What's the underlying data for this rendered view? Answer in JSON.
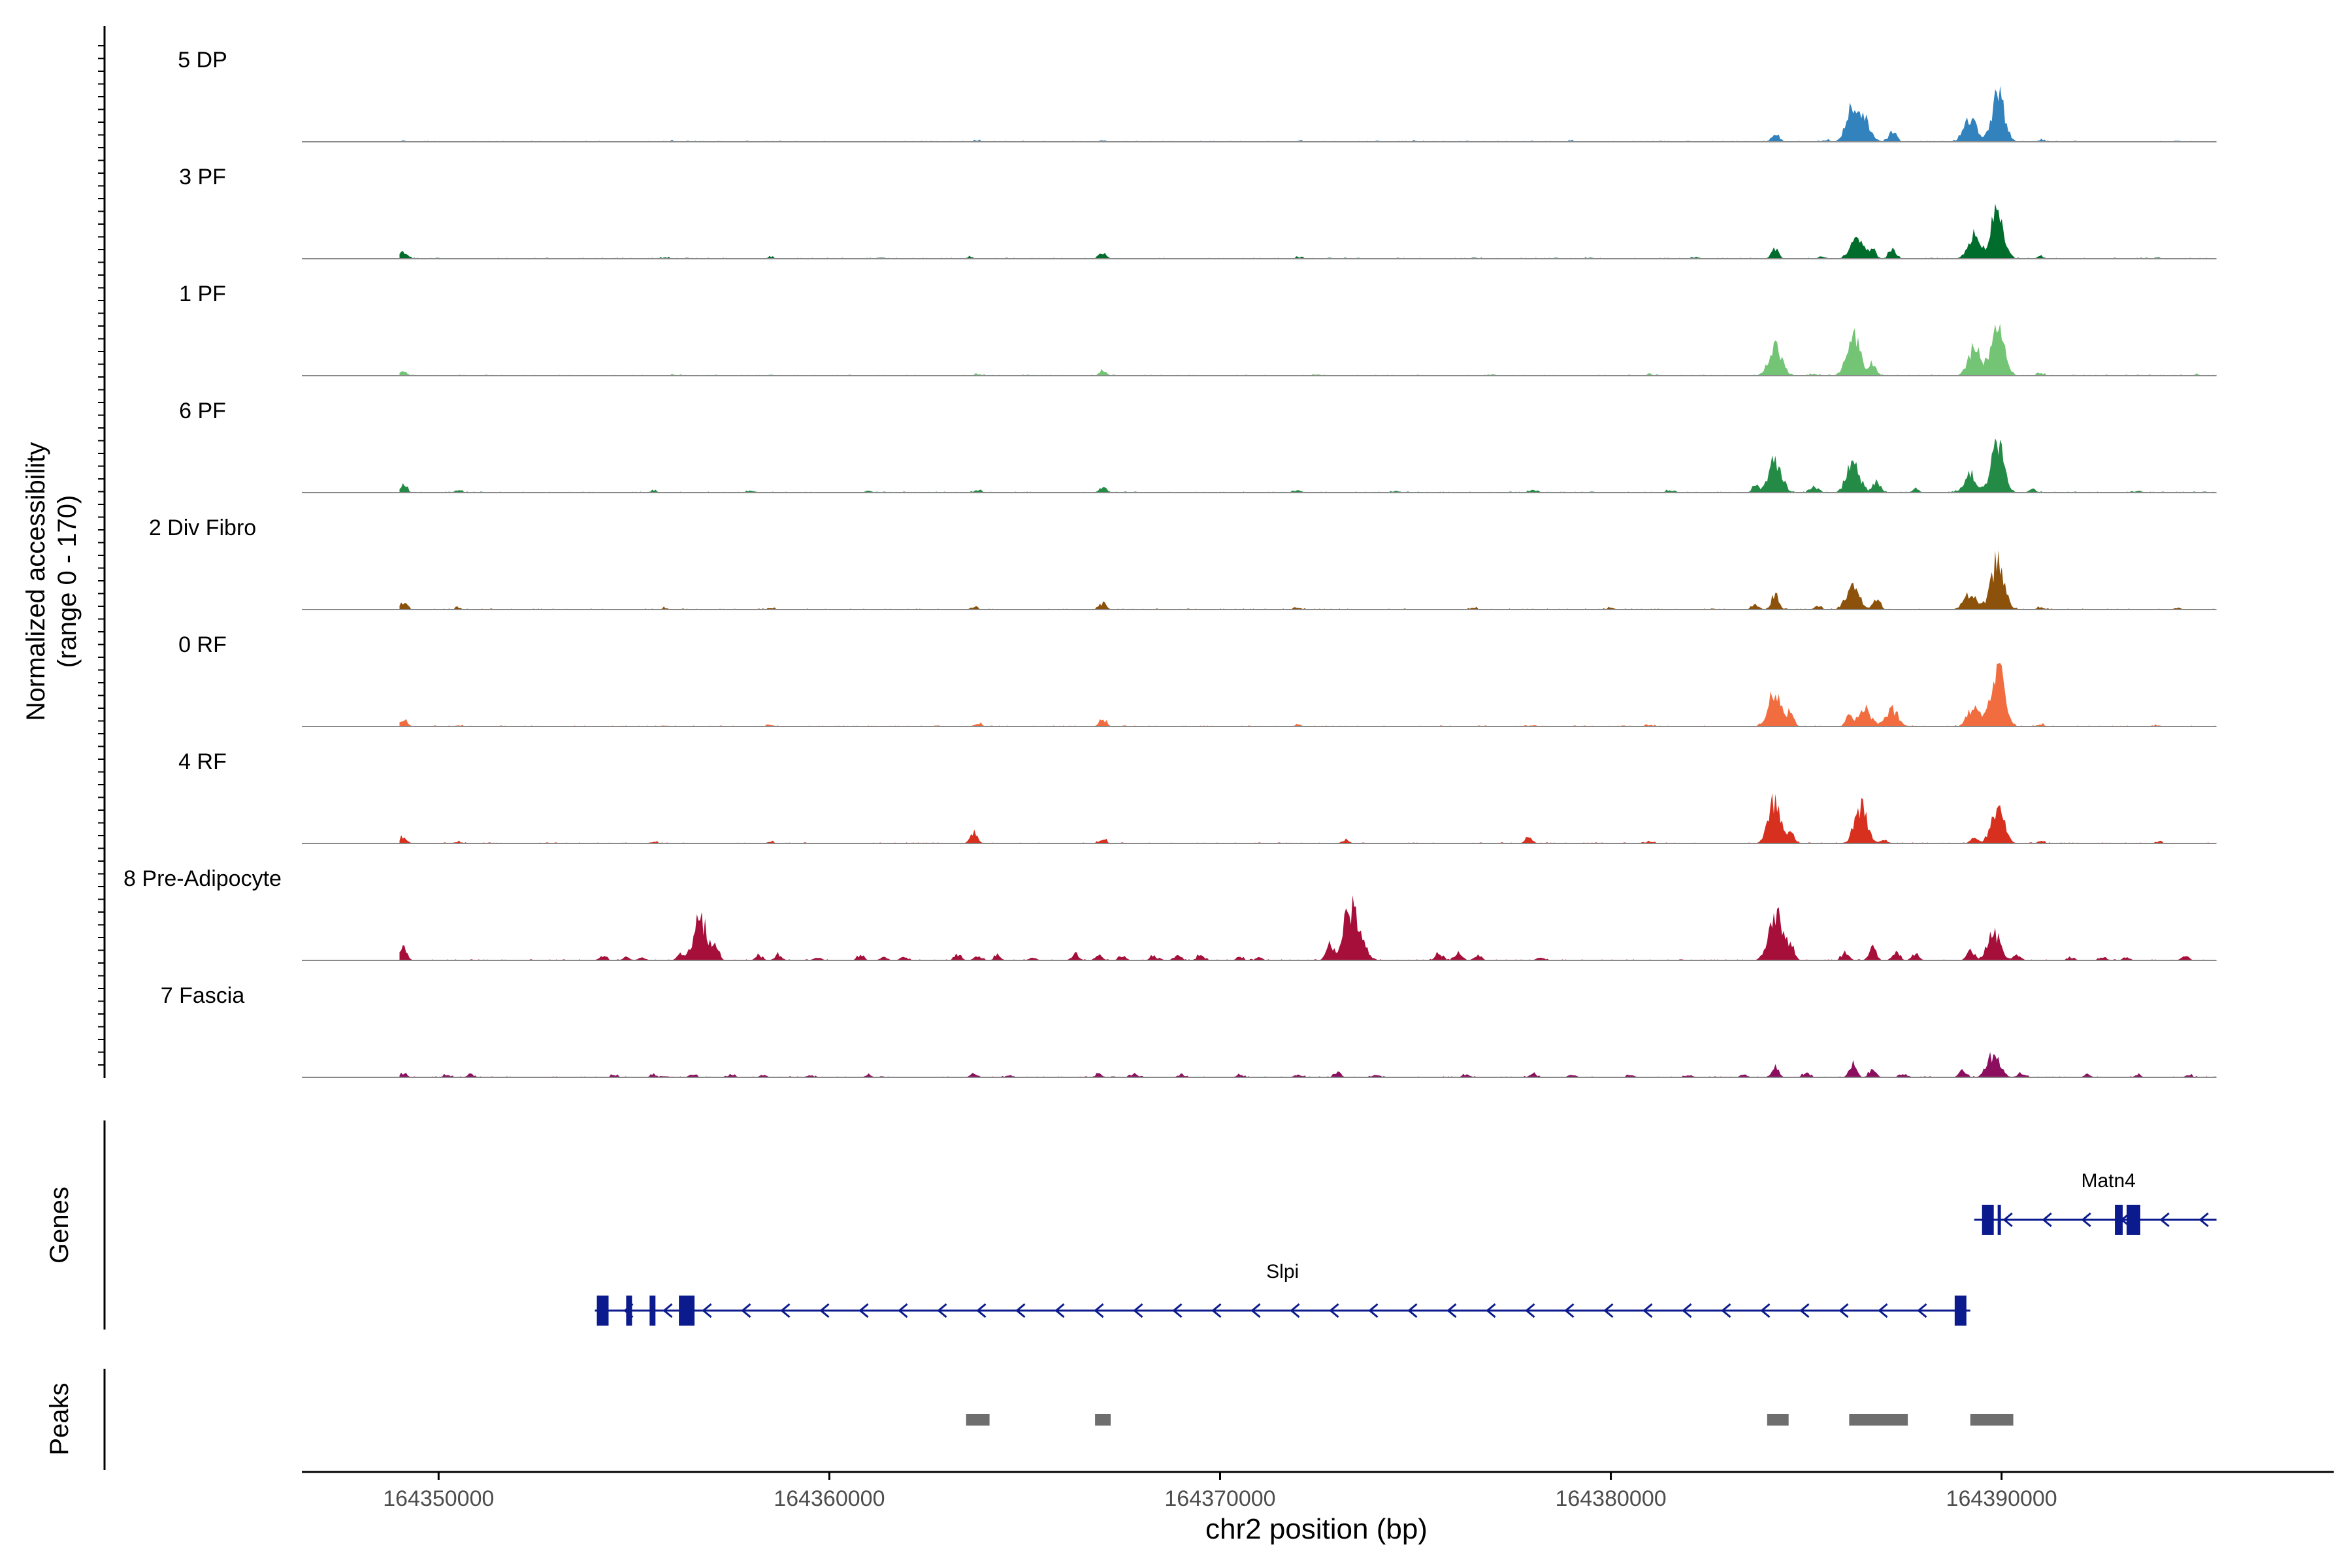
{
  "chart_data": {
    "type": "area",
    "subtype": "genome-coverage-tracks",
    "ylabel_line1": "Normalized accessibility",
    "ylabel_line2": "(range 0 - 170)",
    "y_range": [
      0,
      170
    ],
    "xlabel": "chr2 position (bp)",
    "xlim": [
      164346500,
      164398500
    ],
    "x_ticks": [
      164350000,
      164360000,
      164370000,
      164380000,
      164390000
    ],
    "x_tick_labels": [
      "164350000",
      "164360000",
      "164370000",
      "164380000",
      "164390000"
    ],
    "track_extent": [
      164349000,
      164395500
    ],
    "series": [
      {
        "name": "5 DP",
        "color": "#3182BD",
        "peaks": [
          [
            164349100,
            2
          ],
          [
            164356000,
            1.5
          ],
          [
            164363800,
            2
          ],
          [
            164367000,
            2.5
          ],
          [
            164372000,
            2
          ],
          [
            164375000,
            1.5
          ],
          [
            164379000,
            1.5
          ],
          [
            164382000,
            1.5
          ],
          [
            164384200,
            14
          ],
          [
            164385500,
            3
          ],
          [
            164386200,
            55
          ],
          [
            164386500,
            30
          ],
          [
            164387200,
            18
          ],
          [
            164389200,
            40
          ],
          [
            164389900,
            80
          ],
          [
            164391000,
            3
          ],
          [
            164394500,
            2
          ]
        ]
      },
      {
        "name": "3 PF",
        "color": "#006D2C",
        "peaks": [
          [
            164349100,
            12
          ],
          [
            164355800,
            2
          ],
          [
            164358500,
            2.5
          ],
          [
            164363600,
            3
          ],
          [
            164367000,
            8
          ],
          [
            164372000,
            2.5
          ],
          [
            164376500,
            2
          ],
          [
            164379500,
            2
          ],
          [
            164382200,
            3
          ],
          [
            164384200,
            18
          ],
          [
            164385400,
            4
          ],
          [
            164386300,
            35
          ],
          [
            164386700,
            14
          ],
          [
            164387200,
            16
          ],
          [
            164389300,
            38
          ],
          [
            164389900,
            80
          ],
          [
            164391000,
            4
          ],
          [
            164394000,
            2
          ]
        ]
      },
      {
        "name": "1 PF",
        "color": "#74C476",
        "peaks": [
          [
            164349100,
            8
          ],
          [
            164356000,
            1.5
          ],
          [
            164358500,
            2
          ],
          [
            164363800,
            2.5
          ],
          [
            164367000,
            8
          ],
          [
            164372500,
            2
          ],
          [
            164377000,
            2
          ],
          [
            164381000,
            2
          ],
          [
            164384200,
            50
          ],
          [
            164385200,
            3
          ],
          [
            164386200,
            70
          ],
          [
            164386700,
            20
          ],
          [
            164389300,
            45
          ],
          [
            164389900,
            85
          ],
          [
            164391000,
            4
          ],
          [
            164395000,
            2
          ]
        ]
      },
      {
        "name": "6 PF",
        "color": "#238B45",
        "peaks": [
          [
            164349100,
            14
          ],
          [
            164350500,
            4
          ],
          [
            164355500,
            3
          ],
          [
            164358000,
            4
          ],
          [
            164361000,
            3
          ],
          [
            164363800,
            4
          ],
          [
            164367000,
            10
          ],
          [
            164372000,
            4
          ],
          [
            164374500,
            3
          ],
          [
            164378000,
            4
          ],
          [
            164381500,
            4
          ],
          [
            164383700,
            10
          ],
          [
            164384200,
            55
          ],
          [
            164385200,
            10
          ],
          [
            164386200,
            50
          ],
          [
            164386800,
            22
          ],
          [
            164387800,
            6
          ],
          [
            164389200,
            30
          ],
          [
            164389900,
            85
          ],
          [
            164390800,
            6
          ],
          [
            164393500,
            3
          ]
        ]
      },
      {
        "name": "2 Div Fibro",
        "color": "#8C510A",
        "peaks": [
          [
            164349100,
            10
          ],
          [
            164350500,
            3
          ],
          [
            164355800,
            3
          ],
          [
            164358500,
            3
          ],
          [
            164363700,
            4
          ],
          [
            164367000,
            10
          ],
          [
            164372000,
            3
          ],
          [
            164376500,
            3
          ],
          [
            164380000,
            3
          ],
          [
            164383700,
            8
          ],
          [
            164384200,
            25
          ],
          [
            164385300,
            6
          ],
          [
            164386200,
            40
          ],
          [
            164386800,
            18
          ],
          [
            164389200,
            28
          ],
          [
            164389900,
            85
          ],
          [
            164391000,
            4
          ],
          [
            164394500,
            3
          ]
        ]
      },
      {
        "name": "0 RF",
        "color": "#F16D3F",
        "peaks": [
          [
            164349100,
            12
          ],
          [
            164350500,
            2
          ],
          [
            164355800,
            2
          ],
          [
            164358500,
            2.5
          ],
          [
            164363800,
            6
          ],
          [
            164367000,
            12
          ],
          [
            164372000,
            3
          ],
          [
            164378000,
            2.5
          ],
          [
            164381000,
            2.5
          ],
          [
            164384200,
            65
          ],
          [
            164384600,
            20
          ],
          [
            164386100,
            20
          ],
          [
            164386500,
            28
          ],
          [
            164387200,
            28
          ],
          [
            164389300,
            32
          ],
          [
            164389900,
            100
          ],
          [
            164391000,
            4
          ],
          [
            164394000,
            2
          ]
        ]
      },
      {
        "name": "4 RF",
        "color": "#D7301F",
        "peaks": [
          [
            164349100,
            12
          ],
          [
            164350500,
            3
          ],
          [
            164355500,
            3
          ],
          [
            164358500,
            3
          ],
          [
            164363700,
            18
          ],
          [
            164367000,
            8
          ],
          [
            164373200,
            6
          ],
          [
            164377900,
            10
          ],
          [
            164381000,
            3
          ],
          [
            164384200,
            75
          ],
          [
            164384600,
            15
          ],
          [
            164386400,
            60
          ],
          [
            164387000,
            6
          ],
          [
            164389300,
            12
          ],
          [
            164389900,
            58
          ],
          [
            164391000,
            4
          ],
          [
            164394000,
            3
          ]
        ]
      },
      {
        "name": "8 Pre-Adipocyte",
        "color": "#A50F3A",
        "peaks": [
          [
            164349100,
            22
          ],
          [
            164354200,
            8
          ],
          [
            164354800,
            6
          ],
          [
            164355200,
            5
          ],
          [
            164356200,
            12
          ],
          [
            164356700,
            70
          ],
          [
            164357100,
            18
          ],
          [
            164358200,
            8
          ],
          [
            164358700,
            10
          ],
          [
            164359700,
            6
          ],
          [
            164360800,
            8
          ],
          [
            164361400,
            6
          ],
          [
            164361900,
            6
          ],
          [
            164363300,
            10
          ],
          [
            164363800,
            8
          ],
          [
            164364300,
            8
          ],
          [
            164365200,
            5
          ],
          [
            164366300,
            12
          ],
          [
            164366900,
            10
          ],
          [
            164367500,
            8
          ],
          [
            164368300,
            8
          ],
          [
            164368900,
            8
          ],
          [
            164369500,
            10
          ],
          [
            164370500,
            6
          ],
          [
            164371000,
            5
          ],
          [
            164372800,
            25
          ],
          [
            164373300,
            85
          ],
          [
            164373600,
            30
          ],
          [
            164375600,
            12
          ],
          [
            164376100,
            15
          ],
          [
            164376600,
            10
          ],
          [
            164378200,
            5
          ],
          [
            164384200,
            90
          ],
          [
            164384600,
            25
          ],
          [
            164386000,
            15
          ],
          [
            164386700,
            25
          ],
          [
            164387300,
            15
          ],
          [
            164387800,
            12
          ],
          [
            164389200,
            18
          ],
          [
            164389800,
            48
          ],
          [
            164390400,
            10
          ],
          [
            164391800,
            5
          ],
          [
            164392600,
            6
          ],
          [
            164393200,
            6
          ],
          [
            164394700,
            8
          ],
          [
            164395700,
            6
          ]
        ]
      },
      {
        "name": "7 Fascia",
        "color": "#8B0F5E",
        "peaks": [
          [
            164349100,
            6
          ],
          [
            164350200,
            4
          ],
          [
            164350800,
            4
          ],
          [
            164354500,
            4
          ],
          [
            164355500,
            4
          ],
          [
            164356500,
            5
          ],
          [
            164357500,
            4
          ],
          [
            164358300,
            4
          ],
          [
            164359500,
            4
          ],
          [
            164361000,
            4
          ],
          [
            164363700,
            7
          ],
          [
            164364600,
            4
          ],
          [
            164366900,
            6
          ],
          [
            164367800,
            5
          ],
          [
            164369000,
            4
          ],
          [
            164370500,
            4
          ],
          [
            164372000,
            5
          ],
          [
            164373000,
            7
          ],
          [
            164374000,
            5
          ],
          [
            164376300,
            5
          ],
          [
            164378000,
            6
          ],
          [
            164379000,
            5
          ],
          [
            164380500,
            4
          ],
          [
            164382000,
            4
          ],
          [
            164383400,
            5
          ],
          [
            164384200,
            16
          ],
          [
            164385000,
            8
          ],
          [
            164386200,
            25
          ],
          [
            164386700,
            14
          ],
          [
            164387500,
            6
          ],
          [
            164389000,
            12
          ],
          [
            164389800,
            38
          ],
          [
            164390500,
            8
          ],
          [
            164392200,
            4
          ],
          [
            164393500,
            4
          ],
          [
            164394800,
            4
          ]
        ]
      }
    ],
    "genes_label": "Genes",
    "genes": [
      {
        "name": "Matn4",
        "start": 164389300,
        "end": 164395500,
        "strand": "-",
        "exons": [
          [
            164389500,
            164389800
          ],
          [
            164389900,
            164389960
          ],
          [
            164392900,
            164393100
          ],
          [
            164393200,
            164393550
          ]
        ]
      },
      {
        "name": "Slpi",
        "start": 164354000,
        "end": 164389200,
        "strand": "-",
        "exons": [
          [
            164354050,
            164354350
          ],
          [
            164354800,
            164354950
          ],
          [
            164355400,
            164355550
          ],
          [
            164356150,
            164356550
          ],
          [
            164388800,
            164389100
          ]
        ]
      }
    ],
    "peaks_label": "Peaks",
    "peak_regions": [
      [
        164363500,
        164364100
      ],
      [
        164366800,
        164367200
      ],
      [
        164384000,
        164384550
      ],
      [
        164386100,
        164387600
      ],
      [
        164389200,
        164390300
      ]
    ]
  }
}
